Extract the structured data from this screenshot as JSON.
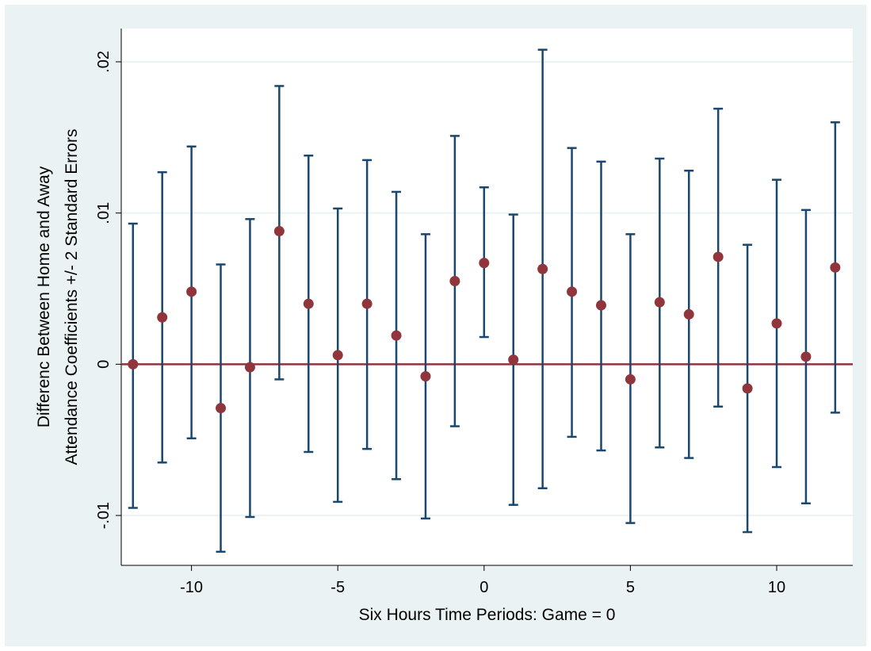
{
  "chart_data": {
    "type": "scatter",
    "subtype": "point-estimates-with-error-bars",
    "xlabel": "Six Hours Time Periods: Game = 0",
    "ylabel_lines": [
      "Differenc Between Home and Away",
      "Attendance Coefficients +/- 2 Standard Errors"
    ],
    "xlim": [
      -12.4,
      12.6
    ],
    "ylim": [
      -0.0133,
      0.0222
    ],
    "x_ticks": [
      -10,
      -5,
      0,
      5,
      10
    ],
    "x_tick_labels": [
      "-10",
      "-5",
      "0",
      "5",
      "10"
    ],
    "y_ticks": [
      -0.01,
      0,
      0.01,
      0.02
    ],
    "y_tick_labels": [
      "-.01",
      "0",
      ".01",
      ".02"
    ],
    "reference_line": {
      "y": 0
    },
    "grid": "horizontal",
    "colors": {
      "background": "#eaf2f3",
      "plot_background": "#ffffff",
      "gridline": "#eaf2f3",
      "error_bar": "#1a476f",
      "point": "#90353b",
      "reference_line": "#90353b"
    },
    "series": [
      {
        "x": [
          -12,
          -11,
          -10,
          -9,
          -8,
          -7,
          -6,
          -5,
          -4,
          -3,
          -2,
          -1,
          0,
          1,
          2,
          3,
          4,
          5,
          6,
          7,
          8,
          9,
          10,
          11,
          12
        ],
        "estimate": [
          0.0,
          0.0031,
          0.0048,
          -0.0029,
          -0.0002,
          0.0088,
          0.004,
          0.0006,
          0.004,
          0.0019,
          -0.0008,
          0.0055,
          0.0067,
          0.0003,
          0.0063,
          0.0048,
          0.0039,
          -0.001,
          0.0041,
          0.0033,
          0.0071,
          -0.0016,
          0.0027,
          0.0005,
          0.0064
        ],
        "lower": [
          -0.0095,
          -0.0065,
          -0.0049,
          -0.0124,
          -0.0101,
          -0.001,
          -0.0058,
          -0.0091,
          -0.0056,
          -0.0076,
          -0.0102,
          -0.0041,
          0.0018,
          -0.0093,
          -0.0082,
          -0.0048,
          -0.0057,
          -0.0105,
          -0.0055,
          -0.0062,
          -0.0028,
          -0.0111,
          -0.0068,
          -0.0092,
          -0.0032
        ],
        "upper": [
          0.0093,
          0.0127,
          0.0144,
          0.0066,
          0.0096,
          0.0184,
          0.0138,
          0.0103,
          0.0135,
          0.0114,
          0.0086,
          0.0151,
          0.0117,
          0.0099,
          0.0208,
          0.0143,
          0.0134,
          0.0086,
          0.0136,
          0.0128,
          0.0169,
          0.0079,
          0.0122,
          0.0102,
          0.016
        ]
      }
    ]
  }
}
